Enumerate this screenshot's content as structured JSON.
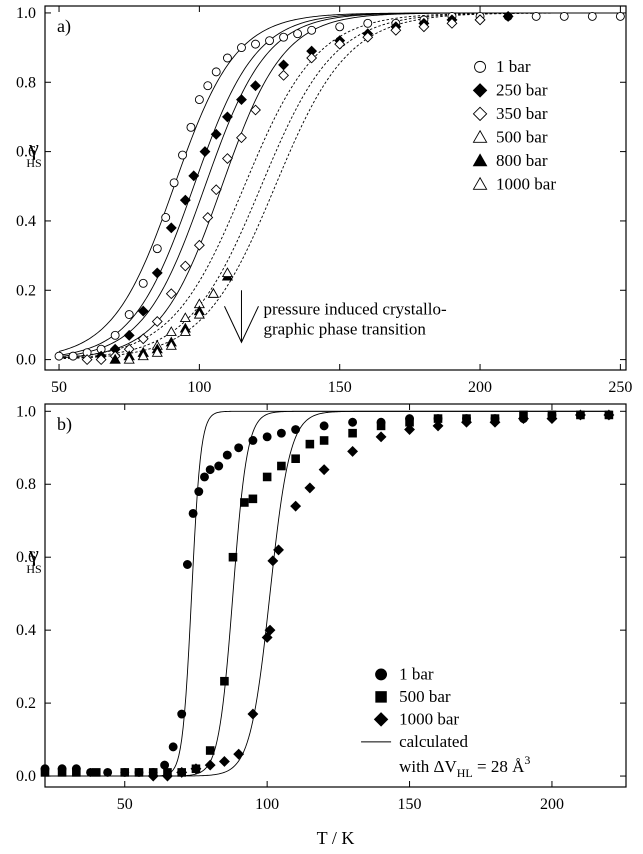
{
  "chart_data": [
    {
      "type": "scatter",
      "panel_label": "a)",
      "xlim": [
        45,
        252
      ],
      "ylim": [
        -0.03,
        1.02
      ],
      "x_ticks": [
        50,
        100,
        150,
        200,
        250
      ],
      "y_ticks": [
        0.0,
        0.2,
        0.4,
        0.6,
        0.8,
        1.0
      ],
      "x_tick_labels": [
        "50",
        "100",
        "150",
        "200",
        "250"
      ],
      "y_tick_labels": [
        "0.0",
        "0.2",
        "0.4",
        "0.6",
        "0.8",
        "1.0"
      ],
      "ylabel": "γ",
      "ylabel_sub": "HS",
      "legend_position": "right",
      "annotation": {
        "lines": [
          "pressure induced crystallo-",
          "graphic phase transition"
        ],
        "arrow_x": 115,
        "arrow_from": 0.2,
        "arrow_to": 0.05
      },
      "series": [
        {
          "name": "1 bar",
          "marker": "open-circle",
          "curve": "solid",
          "fit": {
            "t0": 91,
            "w": 11
          },
          "x": [
            50,
            55,
            60,
            65,
            70,
            75,
            80,
            85,
            88,
            91,
            94,
            97,
            100,
            103,
            106,
            110,
            115,
            120,
            125,
            130,
            135,
            140,
            150,
            160,
            170,
            180,
            190,
            200,
            210,
            220,
            230,
            240,
            250
          ],
          "y": [
            0.01,
            0.01,
            0.02,
            0.03,
            0.07,
            0.13,
            0.22,
            0.32,
            0.41,
            0.51,
            0.59,
            0.67,
            0.75,
            0.79,
            0.83,
            0.87,
            0.9,
            0.91,
            0.92,
            0.93,
            0.94,
            0.95,
            0.96,
            0.97,
            0.97,
            0.98,
            0.99,
            0.99,
            0.99,
            0.99,
            0.99,
            0.99,
            0.99
          ]
        },
        {
          "name": "250 bar",
          "marker": "filled-diamond",
          "curve": "solid",
          "fit": {
            "t0": 98,
            "w": 11
          },
          "x": [
            65,
            70,
            75,
            80,
            85,
            90,
            95,
            98,
            102,
            106,
            110,
            115,
            120,
            130,
            140,
            150,
            160,
            170,
            180,
            190,
            200,
            210
          ],
          "y": [
            0.01,
            0.03,
            0.07,
            0.14,
            0.25,
            0.38,
            0.46,
            0.53,
            0.6,
            0.65,
            0.7,
            0.75,
            0.79,
            0.85,
            0.89,
            0.92,
            0.94,
            0.96,
            0.97,
            0.98,
            0.98,
            0.99
          ]
        },
        {
          "name": "350 bar",
          "marker": "open-diamond",
          "curve": "solid",
          "fit": {
            "t0": 102,
            "w": 11
          },
          "x": [
            60,
            65,
            70,
            75,
            80,
            85,
            90,
            95,
            100,
            103,
            106,
            110,
            115,
            120,
            130,
            140,
            150,
            160,
            170,
            180,
            190,
            200
          ],
          "y": [
            0.0,
            0.0,
            0.01,
            0.03,
            0.06,
            0.11,
            0.19,
            0.27,
            0.33,
            0.41,
            0.49,
            0.58,
            0.64,
            0.72,
            0.82,
            0.87,
            0.91,
            0.93,
            0.95,
            0.96,
            0.97,
            0.98
          ]
        },
        {
          "name": "500 bar",
          "marker": "open-triangle",
          "curve": "solid",
          "fit": {
            "t0": 108,
            "w": 11
          },
          "x": [
            70,
            75,
            80,
            85,
            90,
            95,
            100
          ],
          "y": [
            0.0,
            0.01,
            0.02,
            0.04,
            0.08,
            0.12,
            0.16
          ]
        },
        {
          "name": "800 bar",
          "marker": "filled-triangle",
          "curve": "dashed",
          "fit": {
            "t0": 116,
            "w": 13
          },
          "x": [
            70,
            75,
            80,
            85,
            90,
            95,
            100,
            105,
            110
          ],
          "y": [
            0.0,
            0.01,
            0.02,
            0.03,
            0.05,
            0.09,
            0.14,
            0.19,
            0.24
          ]
        },
        {
          "name": "1000 bar",
          "marker": "open-triangle",
          "curve": "dashed",
          "fit": {
            "t0": 122,
            "w": 13
          },
          "x": [
            75,
            80,
            85,
            90,
            95,
            100,
            105,
            110
          ],
          "y": [
            0.0,
            0.01,
            0.02,
            0.04,
            0.08,
            0.13,
            0.19,
            0.25
          ]
        }
      ],
      "extra_dashed_curves": [
        {
          "t0": 127,
          "w": 13
        }
      ]
    },
    {
      "type": "scatter",
      "panel_label": "b)",
      "xlim": [
        22,
        226
      ],
      "ylim": [
        -0.03,
        1.02
      ],
      "x_ticks": [
        50,
        100,
        150,
        200
      ],
      "y_ticks": [
        0.0,
        0.2,
        0.4,
        0.6,
        0.8,
        1.0
      ],
      "x_tick_labels": [
        "50",
        "100",
        "150",
        "200"
      ],
      "y_tick_labels": [
        "0.0",
        "0.2",
        "0.4",
        "0.6",
        "0.8",
        "1.0"
      ],
      "xlabel": "T / K",
      "ylabel": "γ",
      "ylabel_sub": "HS",
      "legend_position": "bottom-right",
      "legend_calculated": {
        "line1": "calculated",
        "line2_prefix": "with  ΔV",
        "line2_sub": "HL",
        "line2_suffix": " = 28 Å",
        "line2_sup": "3"
      },
      "series": [
        {
          "name": "1 bar",
          "marker": "filled-circle",
          "fit": {
            "t0": 73.5,
            "w": 1.6
          },
          "x": [
            22,
            28,
            33,
            38,
            44,
            50,
            55,
            60,
            64,
            67,
            70,
            72,
            74,
            76,
            78,
            80,
            83,
            86,
            90,
            95,
            100,
            105,
            110,
            120,
            130,
            140,
            150,
            160,
            170,
            180,
            190,
            200,
            210,
            220
          ],
          "y": [
            0.02,
            0.02,
            0.02,
            0.01,
            0.01,
            0.01,
            0.01,
            0.01,
            0.03,
            0.08,
            0.17,
            0.58,
            0.72,
            0.78,
            0.82,
            0.84,
            0.85,
            0.88,
            0.9,
            0.92,
            0.93,
            0.94,
            0.95,
            0.96,
            0.97,
            0.97,
            0.98,
            0.98,
            0.98,
            0.98,
            0.98,
            0.99,
            0.99,
            0.99
          ]
        },
        {
          "name": "500 bar",
          "marker": "filled-square",
          "fit": {
            "t0": 88,
            "w": 2.5
          },
          "x": [
            22,
            28,
            33,
            40,
            50,
            55,
            60,
            65,
            70,
            75,
            80,
            85,
            88,
            92,
            95,
            100,
            105,
            110,
            115,
            120,
            130,
            140,
            150,
            160,
            170,
            180,
            190,
            200,
            210,
            220
          ],
          "y": [
            0.01,
            0.01,
            0.01,
            0.01,
            0.01,
            0.01,
            0.01,
            0.01,
            0.01,
            0.02,
            0.07,
            0.26,
            0.6,
            0.75,
            0.76,
            0.82,
            0.85,
            0.87,
            0.91,
            0.92,
            0.94,
            0.96,
            0.97,
            0.98,
            0.98,
            0.98,
            0.99,
            0.99,
            0.99,
            0.99
          ]
        },
        {
          "name": "1000 bar",
          "marker": "filled-diamond",
          "fit": {
            "t0": 101,
            "w": 3.5
          },
          "x": [
            60,
            65,
            70,
            75,
            80,
            85,
            90,
            95,
            100,
            101,
            102,
            104,
            110,
            115,
            120,
            130,
            140,
            150,
            160,
            170,
            180,
            190,
            200,
            210,
            220
          ],
          "y": [
            0.0,
            0.0,
            0.01,
            0.02,
            0.03,
            0.04,
            0.06,
            0.17,
            0.38,
            0.4,
            0.59,
            0.62,
            0.74,
            0.79,
            0.84,
            0.89,
            0.93,
            0.95,
            0.96,
            0.97,
            0.97,
            0.98,
            0.98,
            0.99,
            0.99
          ]
        }
      ]
    }
  ]
}
